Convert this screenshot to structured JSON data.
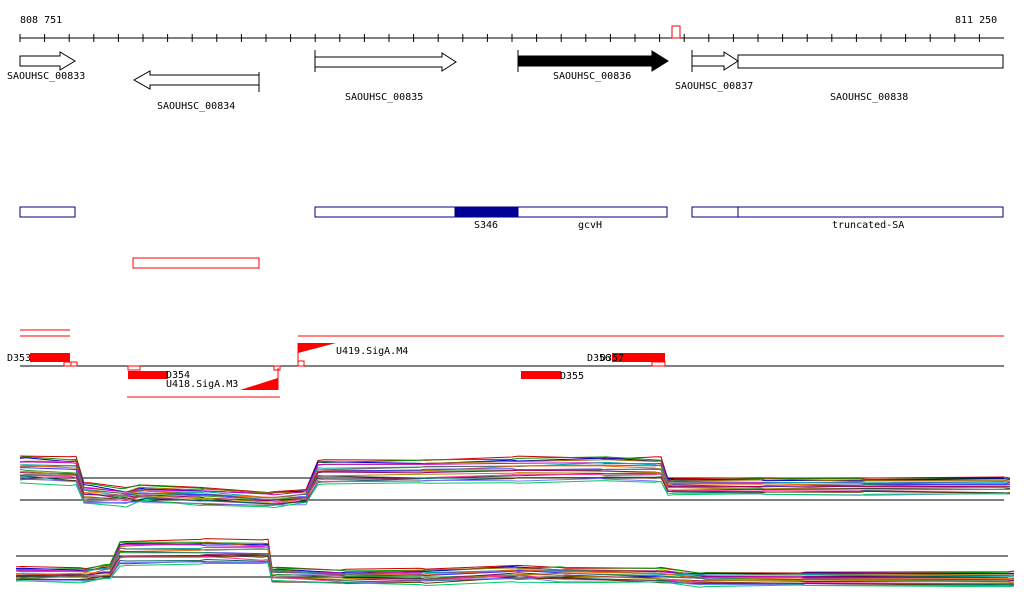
{
  "ruler": {
    "start": "808 751",
    "end": "811 250"
  },
  "genes": [
    {
      "id": "SAOUHSC_00833",
      "label": "SAOUHSC_00833",
      "strand": "+",
      "highlight": false
    },
    {
      "id": "SAOUHSC_00834",
      "label": "SAOUHSC_00834",
      "strand": "-",
      "highlight": false
    },
    {
      "id": "SAOUHSC_00835",
      "label": "SAOUHSC_00835",
      "strand": "+",
      "highlight": false
    },
    {
      "id": "SAOUHSC_00836",
      "label": "SAOUHSC_00836",
      "strand": "+",
      "highlight": true
    },
    {
      "id": "SAOUHSC_00837",
      "label": "SAOUHSC_00837",
      "strand": "+",
      "highlight": false
    },
    {
      "id": "SAOUHSC_00838",
      "label": "SAOUHSC_00838",
      "strand": "+",
      "highlight": false
    }
  ],
  "annotations": {
    "s346": "S346",
    "gcvh": "gcvH",
    "truncated_sa": "truncated-SA"
  },
  "features": {
    "d353": "D353",
    "d354": "D354",
    "d355": "D355",
    "d356": "D356",
    "d357": "D357",
    "u418": "U418.SigA.M3",
    "u419": "U419.SigA.M4"
  },
  "colors": {
    "gene_fill": "#ffffff",
    "gene_highlight": "#000000",
    "annotation_stroke": "#000080",
    "annotation_fill": "#000099",
    "feature_red": "#ff0000"
  }
}
